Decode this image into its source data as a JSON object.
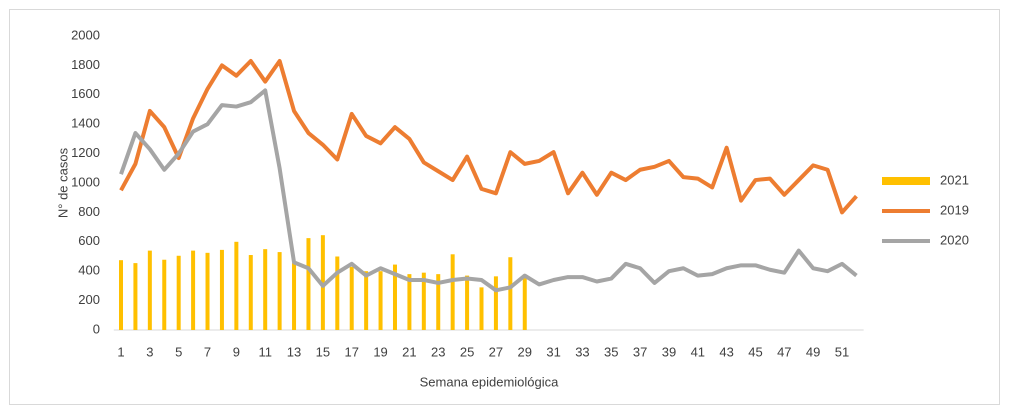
{
  "chart_data": {
    "type": "combo",
    "y_label": "N° de casos",
    "x_label": "Semana epidemiológica",
    "categories": [
      1,
      null,
      3,
      null,
      5,
      null,
      7,
      null,
      9,
      null,
      11,
      null,
      13,
      null,
      15,
      null,
      17,
      null,
      19,
      null,
      21,
      null,
      23,
      null,
      25,
      null,
      27,
      null,
      29,
      null,
      31,
      null,
      33,
      null,
      35,
      null,
      37,
      null,
      39,
      null,
      41,
      null,
      43,
      null,
      45,
      null,
      47,
      null,
      49,
      null,
      51,
      null
    ],
    "series": [
      {
        "name": "2021",
        "type": "bar",
        "color": "#ffc000",
        "values": [
          475,
          455,
          540,
          478,
          505,
          540,
          525,
          545,
          600,
          510,
          550,
          530,
          455,
          625,
          645,
          500,
          430,
          400,
          400,
          445,
          380,
          390,
          380,
          515,
          370,
          290,
          365,
          495,
          370,
          null,
          null,
          null,
          null,
          null,
          null,
          null,
          null,
          null,
          null,
          null,
          null,
          null,
          null,
          null,
          null,
          null,
          null,
          null,
          null,
          null,
          null,
          null
        ]
      },
      {
        "name": "2019",
        "type": "line",
        "color": "#ed7d31",
        "values": [
          950,
          1130,
          1490,
          1380,
          1170,
          1440,
          1640,
          1800,
          1730,
          1830,
          1690,
          1830,
          1490,
          1340,
          1260,
          1160,
          1470,
          1320,
          1270,
          1380,
          1300,
          1140,
          1080,
          1020,
          1180,
          960,
          930,
          1210,
          1130,
          1150,
          1210,
          930,
          1070,
          920,
          1070,
          1020,
          1090,
          1110,
          1150,
          1040,
          1030,
          970,
          1240,
          880,
          1020,
          1030,
          920,
          1020,
          1120,
          1090,
          800,
          910
        ]
      },
      {
        "name": "2020",
        "type": "line",
        "color": "#a5a5a5",
        "values": [
          1060,
          1340,
          1230,
          1090,
          1200,
          1350,
          1400,
          1530,
          1520,
          1550,
          1630,
          1100,
          460,
          420,
          300,
          390,
          450,
          370,
          420,
          380,
          340,
          340,
          320,
          340,
          350,
          340,
          270,
          290,
          370,
          310,
          340,
          360,
          360,
          330,
          350,
          450,
          420,
          320,
          400,
          420,
          370,
          380,
          420,
          440,
          440,
          410,
          390,
          540,
          420,
          400,
          450,
          370
        ]
      }
    ],
    "ylim": [
      0,
      2000
    ],
    "yticks": [
      0,
      200,
      400,
      600,
      800,
      1000,
      1200,
      1400,
      1600,
      1800,
      2000
    ],
    "legend": "right"
  }
}
